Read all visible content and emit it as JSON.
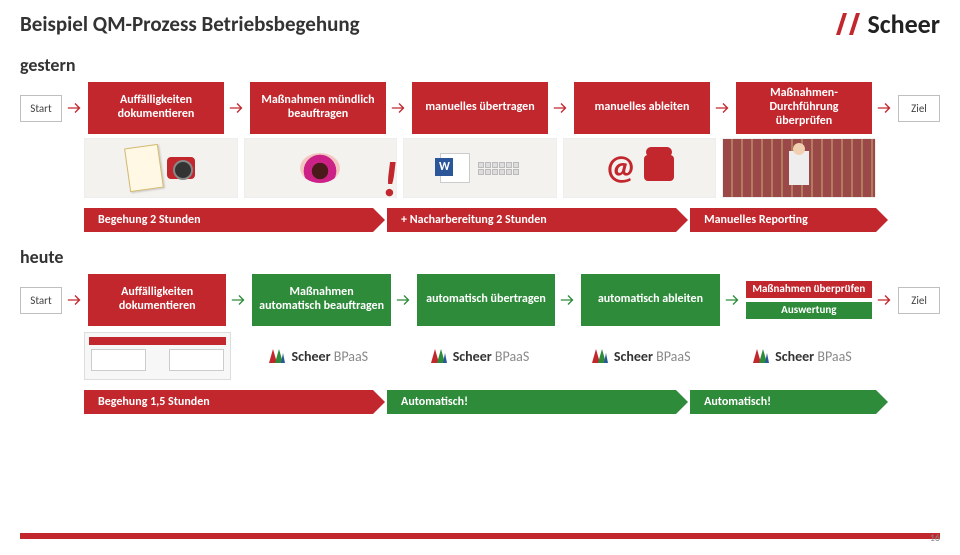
{
  "title": "Beispiel QM-Prozess Betriebsbegehung",
  "brand": "Scheer",
  "colors": {
    "red": "#c1272d",
    "green": "#2e8b3a"
  },
  "gestern": {
    "label": "gestern",
    "start": "Start",
    "goal": "Ziel",
    "steps": [
      "Auffälligkeiten dokumentieren",
      "Maßnahmen mündlich beauftragen",
      "manuelles übertragen",
      "manuelles ableiten",
      "Maßnahmen-Durchführung überprüfen"
    ],
    "banners": [
      {
        "text": "Begehung 2 Stunden",
        "color": "red",
        "flex": 1.6
      },
      {
        "text": "+ Nacharbereitung 2 Stunden",
        "color": "red",
        "flex": 1.6
      },
      {
        "text": "Manuelles Reporting",
        "color": "red",
        "flex": 1
      }
    ]
  },
  "heute": {
    "label": "heute",
    "start": "Start",
    "goal": "Ziel",
    "steps": [
      {
        "text": "Auffälligkeiten dokumentieren",
        "color": "red"
      },
      {
        "text": "Maßnahmen automatisch beauftragen",
        "color": "green"
      },
      {
        "text": "automatisch übertragen",
        "color": "green"
      },
      {
        "text": "automatisch ableiten",
        "color": "green"
      }
    ],
    "stack": [
      {
        "text": "Maßnahmen überprüfen",
        "color": "red"
      },
      {
        "text": "Auswertung",
        "color": "green"
      }
    ],
    "banners": [
      {
        "text": "Begehung 1,5 Stunden",
        "color": "red",
        "flex": 1.6
      },
      {
        "text": "Automatisch!",
        "color": "green",
        "flex": 1.6
      },
      {
        "text": "Automatisch!",
        "color": "green",
        "flex": 1
      }
    ]
  },
  "bpaas": {
    "brand": "Scheer",
    "word": "BPaaS",
    "count": 4
  },
  "page_number": 16
}
